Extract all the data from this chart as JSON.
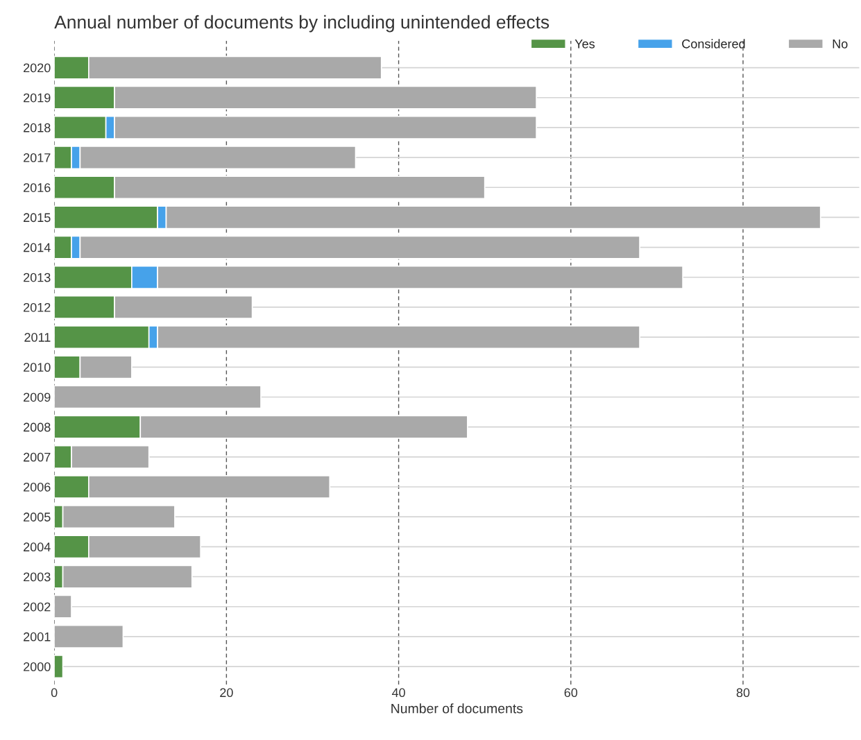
{
  "chart_data": {
    "type": "bar",
    "orientation": "horizontal",
    "stacked": true,
    "title": "Annual number of documents by including unintended effects",
    "xlabel": "Number of documents",
    "categories": [
      "2020",
      "2019",
      "2018",
      "2017",
      "2016",
      "2015",
      "2014",
      "2013",
      "2012",
      "2011",
      "2010",
      "2009",
      "2008",
      "2007",
      "2006",
      "2005",
      "2004",
      "2003",
      "2002",
      "2001",
      "2000"
    ],
    "series": [
      {
        "name": "Yes",
        "color": "#559447",
        "values": [
          4,
          7,
          6,
          2,
          7,
          12,
          2,
          9,
          7,
          11,
          3,
          0,
          10,
          2,
          4,
          1,
          4,
          1,
          0,
          0,
          1
        ]
      },
      {
        "name": "Considered",
        "color": "#46a2ea",
        "values": [
          0,
          0,
          1,
          1,
          0,
          1,
          1,
          3,
          0,
          1,
          0,
          0,
          0,
          0,
          0,
          0,
          0,
          0,
          0,
          0,
          0
        ]
      },
      {
        "name": "No",
        "color": "#a9a9a9",
        "values": [
          34,
          49,
          49,
          32,
          43,
          76,
          65,
          61,
          16,
          56,
          6,
          24,
          38,
          9,
          28,
          13,
          13,
          15,
          2,
          8,
          0
        ]
      }
    ],
    "xlim": [
      0,
      93.5
    ],
    "xticks": [
      0,
      20,
      40,
      60,
      80
    ],
    "grid": true,
    "legend": "top right"
  }
}
